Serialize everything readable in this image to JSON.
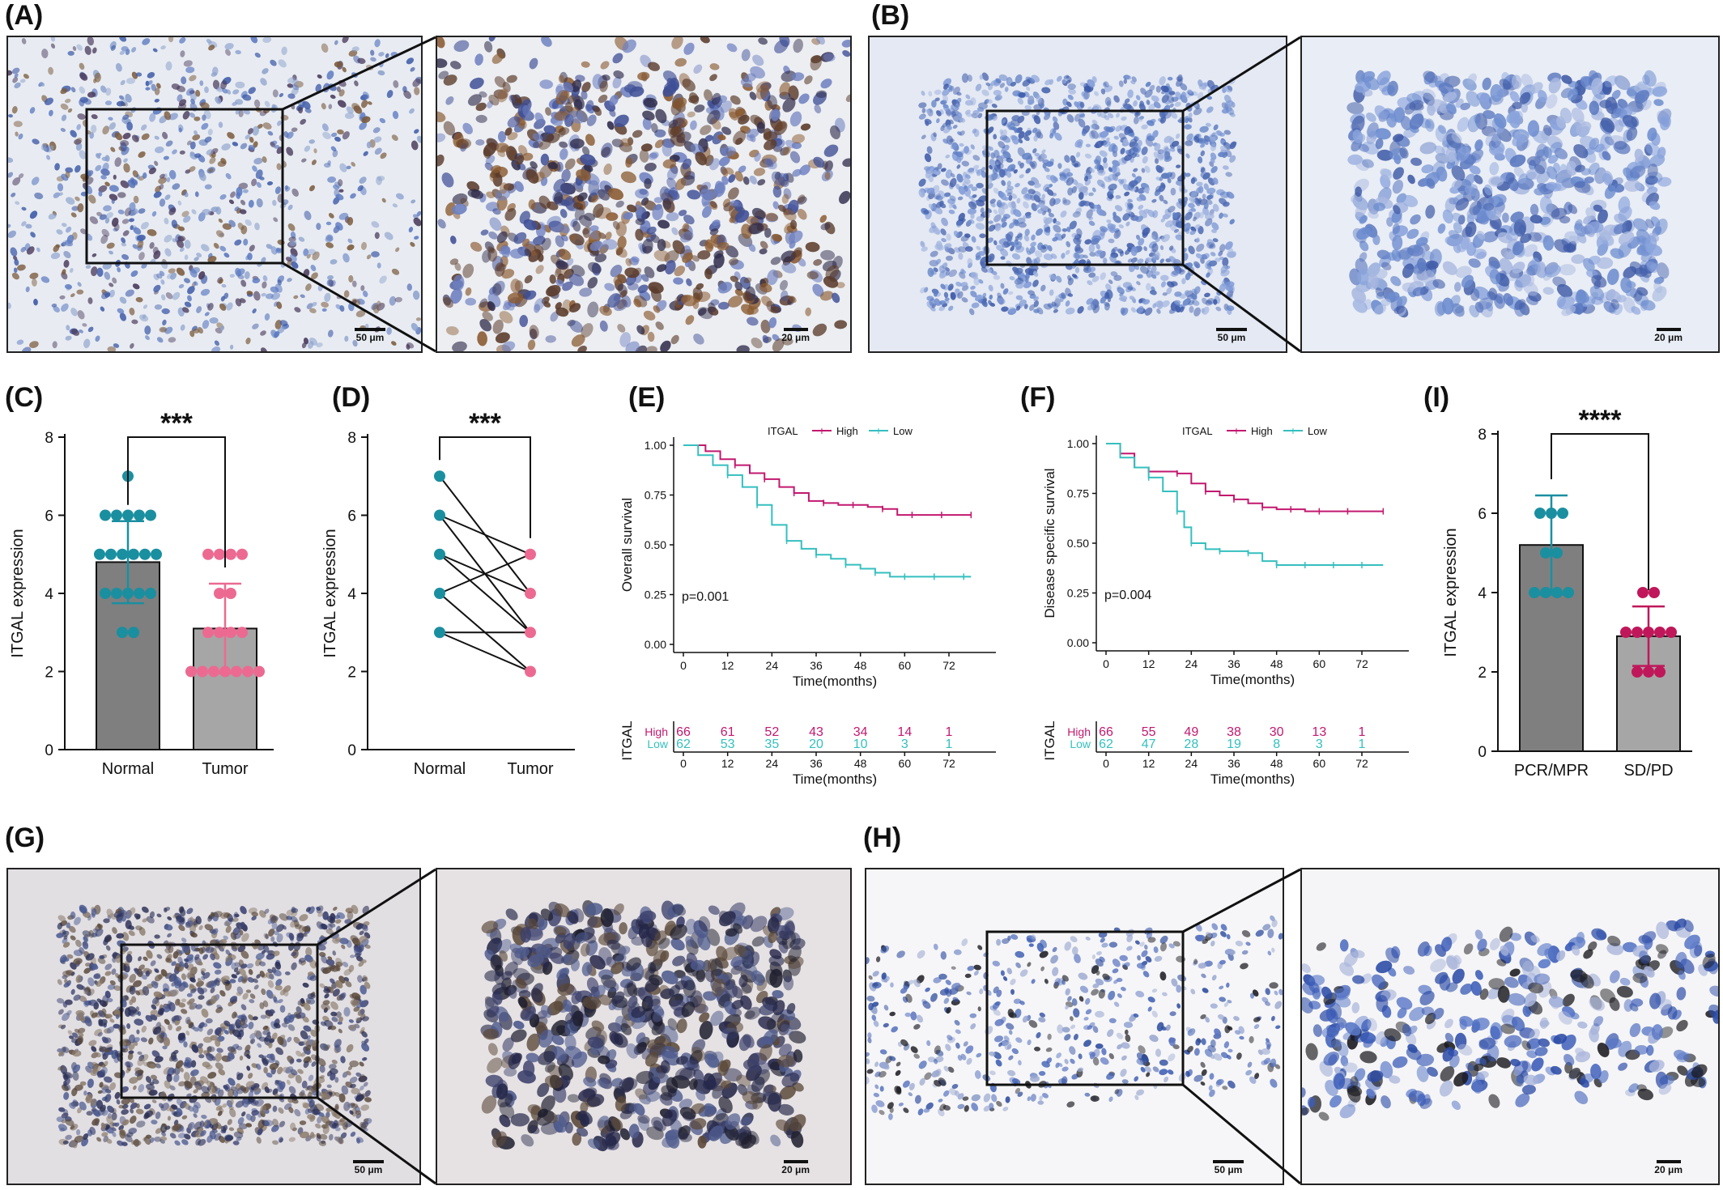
{
  "panels": {
    "A": "(A)",
    "B": "(B)",
    "C": "(C)",
    "D": "(D)",
    "E": "(E)",
    "F": "(F)",
    "G": "(G)",
    "H": "(H)",
    "I": "(I)"
  },
  "scalebars": {
    "s50": "50 μm",
    "s20": "20 μm"
  },
  "colors": {
    "normal": "#1a8fa0",
    "tumor": "#ec6a92",
    "high": "#c2186f",
    "low": "#35bfbf",
    "bar_dark": "#7f7f7f",
    "bar_light": "#a6a6a6",
    "pcr": "#1a8fa0",
    "sdpd": "#c0175a"
  },
  "chart_data": [
    {
      "panel": "C",
      "type": "bar",
      "categories": [
        "Normal",
        "Tumor"
      ],
      "values": [
        4.8,
        3.1
      ],
      "sd": [
        1.05,
        1.15
      ],
      "points": [
        [
          7,
          6,
          6,
          6,
          6,
          6,
          5,
          5,
          5,
          5,
          5,
          5,
          4,
          4,
          4,
          4,
          4,
          3,
          3
        ],
        [
          5,
          5,
          5,
          5,
          4,
          4,
          3,
          3,
          3,
          3,
          2,
          2,
          2,
          2,
          2,
          2,
          2
        ]
      ],
      "ylabel": "ITGAL expression",
      "ylim": [
        0,
        8
      ],
      "yticks": [
        0,
        2,
        4,
        6,
        8
      ],
      "significance": "***"
    },
    {
      "panel": "D",
      "type": "line",
      "categories": [
        "Normal",
        "Tumor"
      ],
      "pairs": [
        [
          7,
          4
        ],
        [
          6,
          5
        ],
        [
          6,
          3
        ],
        [
          5,
          4
        ],
        [
          5,
          3
        ],
        [
          4,
          2
        ],
        [
          4,
          5
        ],
        [
          3,
          3
        ],
        [
          3,
          2
        ]
      ],
      "ylabel": "ITGAL expression",
      "ylim": [
        0,
        8
      ],
      "yticks": [
        0,
        2,
        4,
        6,
        8
      ],
      "significance": "***"
    },
    {
      "panel": "E",
      "type": "line",
      "legend_title": "ITGAL",
      "legend_placement": "top",
      "series": [
        {
          "name": "High",
          "x": [
            0,
            6,
            10,
            14,
            18,
            22,
            26,
            30,
            34,
            38,
            42,
            46,
            50,
            54,
            58,
            62,
            66,
            70,
            74,
            78
          ],
          "y": [
            1.0,
            0.97,
            0.93,
            0.9,
            0.86,
            0.83,
            0.79,
            0.76,
            0.72,
            0.71,
            0.7,
            0.7,
            0.69,
            0.68,
            0.65,
            0.65,
            0.65,
            0.65,
            0.65,
            0.65
          ]
        },
        {
          "name": "Low",
          "x": [
            0,
            4,
            8,
            12,
            16,
            20,
            24,
            28,
            32,
            36,
            40,
            44,
            48,
            52,
            56,
            60,
            64,
            68,
            72,
            76,
            78
          ],
          "y": [
            1.0,
            0.95,
            0.9,
            0.85,
            0.79,
            0.7,
            0.6,
            0.52,
            0.48,
            0.45,
            0.43,
            0.4,
            0.38,
            0.36,
            0.34,
            0.34,
            0.34,
            0.34,
            0.34,
            0.34,
            0.34
          ]
        }
      ],
      "pvalue": "p=0.001",
      "ylabel": "Overall survival",
      "xlabel": "Time(months)",
      "xticks": [
        0,
        12,
        24,
        36,
        48,
        60,
        72
      ],
      "yticks": [
        "0.00",
        "0.25",
        "0.50",
        "0.75",
        "1.00"
      ],
      "risk_table": {
        "label": "ITGAL",
        "High": [
          "66",
          "61",
          "52",
          "43",
          "34",
          "14",
          "1"
        ],
        "Low": [
          "62",
          "53",
          "35",
          "20",
          "10",
          "3",
          "1"
        ]
      }
    },
    {
      "panel": "F",
      "type": "line",
      "legend_title": "ITGAL",
      "legend_placement": "top",
      "series": [
        {
          "name": "High",
          "x": [
            0,
            4,
            8,
            12,
            16,
            20,
            24,
            28,
            32,
            36,
            40,
            44,
            48,
            52,
            56,
            60,
            64,
            68,
            72,
            78
          ],
          "y": [
            1.0,
            0.95,
            0.88,
            0.86,
            0.86,
            0.85,
            0.8,
            0.76,
            0.74,
            0.72,
            0.7,
            0.68,
            0.67,
            0.67,
            0.66,
            0.66,
            0.66,
            0.66,
            0.66,
            0.66
          ]
        },
        {
          "name": "Low",
          "x": [
            0,
            4,
            8,
            12,
            16,
            20,
            22,
            24,
            28,
            32,
            36,
            40,
            44,
            48,
            52,
            56,
            60,
            64,
            68,
            72,
            78
          ],
          "y": [
            1.0,
            0.93,
            0.88,
            0.83,
            0.76,
            0.66,
            0.58,
            0.5,
            0.47,
            0.46,
            0.46,
            0.45,
            0.41,
            0.39,
            0.39,
            0.39,
            0.39,
            0.39,
            0.39,
            0.39,
            0.39
          ]
        }
      ],
      "pvalue": "p=0.004",
      "ylabel": "Disease specific survival",
      "xlabel": "Time(months)",
      "xticks": [
        0,
        12,
        24,
        36,
        48,
        60,
        72
      ],
      "yticks": [
        "0.00",
        "0.25",
        "0.50",
        "0.75",
        "1.00"
      ],
      "risk_table": {
        "label": "ITGAL",
        "High": [
          "66",
          "55",
          "49",
          "38",
          "30",
          "13",
          "1"
        ],
        "Low": [
          "62",
          "47",
          "28",
          "19",
          "8",
          "3",
          "1"
        ]
      }
    },
    {
      "panel": "I",
      "type": "bar",
      "categories": [
        "PCR/MPR",
        "SD/PD"
      ],
      "values": [
        5.2,
        2.9
      ],
      "sd": [
        1.25,
        0.75
      ],
      "points": [
        [
          6,
          6,
          6,
          5,
          5,
          4,
          4,
          4,
          4
        ],
        [
          4,
          4,
          3,
          3,
          3,
          3,
          3,
          2,
          2,
          2
        ]
      ],
      "ylabel": "ITGAL expression",
      "ylim": [
        0,
        8
      ],
      "yticks": [
        0,
        2,
        4,
        6,
        8
      ],
      "significance": "****"
    }
  ]
}
